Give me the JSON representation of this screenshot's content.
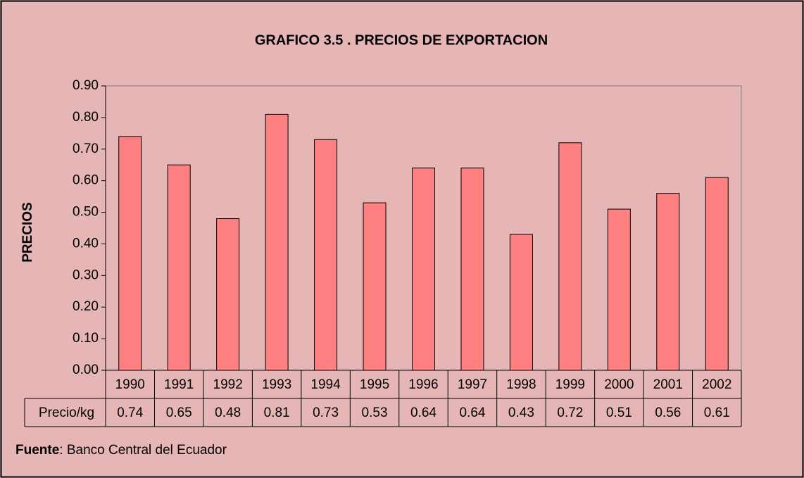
{
  "chart_data": {
    "type": "bar",
    "title": "GRAFICO 3.5 . PRECIOS DE EXPORTACION",
    "y_label": "PRECIOS",
    "categories": [
      "1990",
      "1991",
      "1992",
      "1993",
      "1994",
      "1995",
      "1996",
      "1997",
      "1998",
      "1999",
      "2000",
      "2001",
      "2002"
    ],
    "series": [
      {
        "name": "Precio/kg",
        "color": "#ff8080",
        "values": [
          0.74,
          0.65,
          0.48,
          0.81,
          0.73,
          0.53,
          0.64,
          0.64,
          0.43,
          0.72,
          0.51,
          0.56,
          0.61
        ]
      }
    ],
    "ylim": [
      0,
      0.9
    ],
    "yticks": [
      {
        "value": 0,
        "label": "0.00"
      },
      {
        "value": 0.1,
        "label": "0.10"
      },
      {
        "value": 0.2,
        "label": "0.20"
      },
      {
        "value": 0.3,
        "label": "0.30"
      },
      {
        "value": 0.4,
        "label": "0.40"
      },
      {
        "value": 0.5,
        "label": "0.50"
      },
      {
        "value": 0.6,
        "label": "0.60"
      },
      {
        "value": 0.7,
        "label": "0.70"
      },
      {
        "value": 0.8,
        "label": "0.80"
      },
      {
        "value": 0.9,
        "label": "0.90"
      }
    ],
    "grid": false,
    "source_label": "Fuente",
    "source_text": ": Banco Central del Ecuador"
  }
}
